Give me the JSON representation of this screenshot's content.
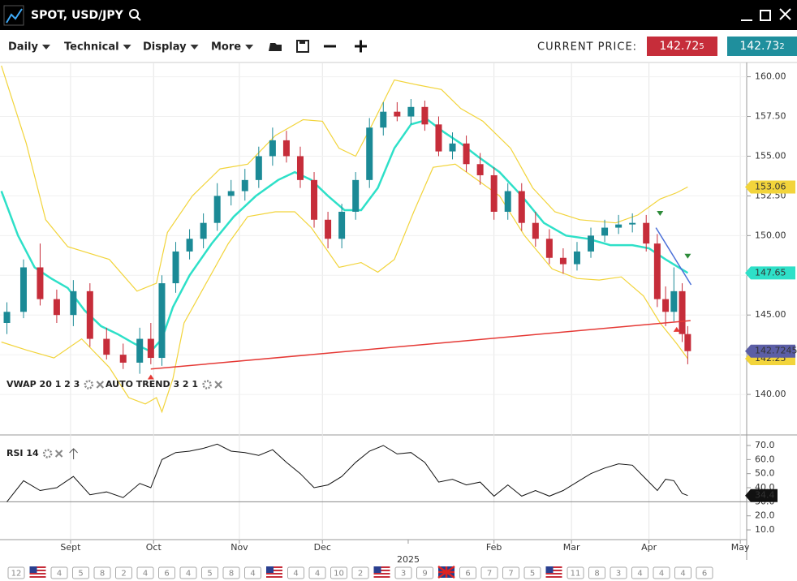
{
  "header": {
    "title": "SPOT, USD/JPY"
  },
  "toolbar": {
    "menus": [
      "Daily",
      "Technical",
      "Display",
      "More"
    ],
    "price_label": "CURRENT PRICE:",
    "bid": "142.72",
    "bid_pip": "5",
    "ask": "142.73",
    "ask_pip": "2"
  },
  "chart_data": [
    {
      "type": "candlestick",
      "grid": true,
      "up_color": "#1b8a96",
      "down_color": "#c62d3a",
      "last_color": "#5b5ea6",
      "indicators": [
        "VWAP 20 1 2 3",
        "AUTO TREND 3 2 1"
      ],
      "xlim": [
        5.5,
        275.3
      ],
      "ylim": [
        137.5,
        160.9
      ],
      "yticks": [
        {
          "value": 140,
          "label": "140.00"
        },
        {
          "value": 142.5,
          "label": "142.50"
        },
        {
          "value": 145,
          "label": "145.00"
        },
        {
          "value": 147.5,
          "label": "147.50"
        },
        {
          "value": 150,
          "label": "150.00"
        },
        {
          "value": 152.5,
          "label": "152.50"
        },
        {
          "value": 155,
          "label": "155.00"
        },
        {
          "value": 157.5,
          "label": "157.50"
        },
        {
          "value": 160,
          "label": "160.00"
        }
      ],
      "x": [
        8,
        14,
        20,
        26,
        32,
        38,
        44,
        50,
        56,
        60,
        64,
        69,
        74,
        79,
        84,
        89,
        94,
        99,
        104,
        109,
        114,
        119,
        124,
        129,
        134,
        139,
        144,
        149,
        154,
        159,
        164,
        169,
        174,
        179,
        184,
        189,
        194,
        199,
        204,
        209,
        214,
        219,
        224,
        229,
        234,
        239,
        243,
        246,
        249,
        252,
        254
      ],
      "open": [
        144.5,
        145.2,
        148,
        146,
        145,
        146.5,
        143.5,
        142.5,
        142,
        143.5,
        142.3,
        147,
        149,
        149.8,
        150.8,
        152.5,
        152.8,
        153.5,
        155,
        156,
        155,
        153.5,
        151,
        149.8,
        151.5,
        153.5,
        156.8,
        157.8,
        157.5,
        158.1,
        157,
        155.3,
        155.8,
        154.5,
        153.8,
        151.5,
        152.8,
        150.8,
        149.8,
        148.6,
        148.2,
        149,
        150,
        150.5,
        150.7,
        150.8,
        149.5,
        146,
        145.2,
        146.5,
        143.8
      ],
      "high": [
        145.8,
        148.5,
        149.5,
        146.6,
        147.2,
        147,
        144.2,
        143.2,
        144.2,
        144.5,
        147.5,
        149.6,
        150.4,
        151.4,
        153.3,
        153.5,
        154.2,
        155.6,
        156.8,
        156.6,
        155.6,
        154,
        151.5,
        152,
        154,
        157.4,
        158.4,
        158.4,
        158.6,
        158.5,
        157.5,
        156.5,
        156.3,
        155.2,
        154.3,
        153.3,
        153.3,
        151.5,
        150.4,
        149.2,
        149.6,
        150.5,
        151,
        151.3,
        151.4,
        151.3,
        150.1,
        146.8,
        148,
        147,
        144.3
      ],
      "low": [
        143.8,
        144.8,
        145.6,
        144.5,
        144.3,
        143,
        142.2,
        141.6,
        141.3,
        141.9,
        141.8,
        146.4,
        148.5,
        149.2,
        150.3,
        151.9,
        152.2,
        153,
        154.4,
        154.6,
        153,
        150.5,
        149.2,
        149.2,
        151,
        153,
        156.3,
        157.2,
        157,
        156.6,
        155,
        154.8,
        154,
        153.2,
        151,
        151,
        150.3,
        149.3,
        148.2,
        147.6,
        147.8,
        148.6,
        149.6,
        150.1,
        150.2,
        149,
        145.5,
        144.3,
        144.6,
        143.3,
        141.9
      ],
      "close": [
        145.2,
        148,
        146,
        145,
        146.5,
        143.5,
        142.5,
        142,
        143.5,
        142.3,
        147,
        149,
        149.8,
        150.8,
        152.5,
        152.8,
        153.5,
        155,
        156,
        155,
        153.5,
        151,
        149.8,
        151.5,
        153.5,
        156.8,
        157.8,
        157.5,
        158.1,
        157,
        155.3,
        155.8,
        154.5,
        153.8,
        151.5,
        152.8,
        150.8,
        149.8,
        148.6,
        148.2,
        149,
        150,
        150.5,
        150.7,
        150.8,
        149.5,
        146,
        145.2,
        146.5,
        143.8,
        142.7245
      ],
      "bands": [
        {
          "color": "#f2d43b",
          "x": [
            6,
            15,
            22,
            30,
            45,
            55,
            62,
            66,
            75,
            85,
            95,
            105,
            115,
            122,
            128,
            134,
            140,
            148,
            156,
            165,
            172,
            180,
            190,
            198,
            206,
            215,
            228,
            236,
            244,
            250,
            254
          ],
          "values": [
            160.7,
            155.8,
            151,
            149.3,
            148.5,
            146.5,
            147,
            150.2,
            152.5,
            154.2,
            154.5,
            156.3,
            157.3,
            157.2,
            155.5,
            155,
            157,
            159.8,
            159.5,
            159.2,
            158,
            157.2,
            155.5,
            153,
            151.5,
            151,
            150.8,
            151.3,
            152.3,
            152.7,
            153.06
          ]
        },
        {
          "color": "#f2d43b",
          "x": [
            6,
            15,
            25,
            35,
            45,
            52,
            58,
            62,
            64,
            68,
            72,
            80,
            88,
            95,
            105,
            112,
            118,
            122,
            128,
            136,
            142,
            148,
            155,
            162,
            170,
            178,
            186,
            195,
            205,
            214,
            222,
            230,
            238,
            244,
            250,
            254
          ],
          "values": [
            143.3,
            142.8,
            142.3,
            143.5,
            141.7,
            139.8,
            139.4,
            139.8,
            138.9,
            141,
            144.5,
            147,
            149.5,
            151.2,
            151.5,
            151.5,
            150.5,
            149.5,
            148,
            148.3,
            147.7,
            148.5,
            151.5,
            154.3,
            154.5,
            153.5,
            152.5,
            150,
            147.9,
            147.3,
            147.2,
            147.4,
            146.2,
            144.5,
            143.2,
            142.25
          ]
        },
        {
          "color": "#2ee0c8",
          "x": [
            6,
            12,
            18,
            24,
            30,
            36,
            42,
            48,
            54,
            60,
            64,
            68,
            74,
            82,
            90,
            98,
            106,
            112,
            118,
            124,
            130,
            136,
            142,
            148,
            154,
            160,
            166,
            172,
            178,
            186,
            194,
            202,
            210,
            218,
            226,
            234,
            240,
            246,
            254
          ],
          "values": [
            152.8,
            150,
            148,
            147.3,
            146.7,
            145.3,
            144.3,
            143.8,
            143.2,
            142.7,
            143.5,
            145.5,
            147.5,
            149.5,
            151.2,
            152.5,
            153.5,
            154,
            153.5,
            152.5,
            151.6,
            151.6,
            153,
            155.5,
            157,
            157.3,
            156.5,
            155.8,
            155,
            154,
            152.5,
            150.8,
            150,
            149.8,
            149.4,
            149.4,
            149.2,
            148.5,
            147.65
          ]
        }
      ],
      "trendlines": [
        {
          "color": "#e53935",
          "x": [
            60,
            255
          ],
          "values": [
            141.6,
            144.65
          ]
        },
        {
          "color": "#4a6fd8",
          "x": [
            242.5,
            255.2
          ],
          "values": [
            150.5,
            146.9
          ]
        }
      ],
      "signals": [
        {
          "x": 244,
          "value": 151.4,
          "color": "#2e8b3a",
          "dir": "down"
        },
        {
          "x": 254,
          "value": 148.7,
          "color": "#2e8b3a",
          "dir": "down"
        },
        {
          "x": 250,
          "value": 144.1,
          "color": "#e53935",
          "dir": "up"
        },
        {
          "x": 60,
          "value": 141.1,
          "color": "#e53935",
          "dir": "up"
        }
      ]
    },
    {
      "type": "line",
      "title": "RSI 14",
      "color": "#111111",
      "reference": 30,
      "xlim": [
        5.5,
        275.3
      ],
      "ylim": [
        3.1,
        75.2
      ],
      "xticks": [
        {
          "value": 31,
          "label": "Sept"
        },
        {
          "value": 61,
          "label": "Oct"
        },
        {
          "value": 92,
          "label": "Nov"
        },
        {
          "value": 122,
          "label": "Dec"
        },
        {
          "value": 184,
          "label": "Feb"
        },
        {
          "value": 212,
          "label": "Mar"
        },
        {
          "value": 240,
          "label": "Apr"
        },
        {
          "value": 273,
          "label": "May"
        }
      ],
      "year_label": {
        "value": 153,
        "label": "2025"
      },
      "yticks": [
        {
          "value": 70,
          "label": "70.0"
        },
        {
          "value": 60,
          "label": "60.0"
        },
        {
          "value": 50,
          "label": "50.0"
        },
        {
          "value": 40,
          "label": "40.0"
        },
        {
          "value": 30,
          "label": "30.0"
        },
        {
          "value": 20,
          "label": "20.0"
        },
        {
          "value": 10,
          "label": "10.0"
        }
      ],
      "x": [
        8,
        14,
        20,
        26,
        32,
        38,
        44,
        50,
        56,
        60,
        64,
        69,
        74,
        79,
        84,
        89,
        94,
        99,
        104,
        109,
        114,
        119,
        124,
        129,
        134,
        139,
        144,
        149,
        154,
        159,
        164,
        169,
        174,
        179,
        184,
        189,
        194,
        199,
        204,
        209,
        214,
        219,
        224,
        229,
        234,
        239,
        243,
        246,
        249,
        252,
        254
      ],
      "values": [
        30,
        45,
        38,
        40,
        48,
        35,
        37,
        33,
        43,
        40,
        60,
        65,
        66,
        68,
        71,
        66,
        65,
        63,
        67,
        58,
        50,
        40,
        42,
        48,
        58,
        66,
        70,
        64,
        65,
        58,
        44,
        46,
        42,
        44,
        34,
        42,
        34,
        38,
        34,
        38,
        44,
        50,
        54,
        57,
        56,
        46,
        38,
        46,
        45,
        36,
        34.4
      ]
    }
  ],
  "events": [
    {
      "label": "12"
    },
    {
      "flag": "us"
    },
    {
      "label": "4"
    },
    {
      "label": "5"
    },
    {
      "label": "8"
    },
    {
      "label": "2"
    },
    {
      "label": "4"
    },
    {
      "label": "6"
    },
    {
      "label": "4"
    },
    {
      "label": "5"
    },
    {
      "label": "8"
    },
    {
      "label": "4"
    },
    {
      "flag": "us"
    },
    {
      "label": "4"
    },
    {
      "label": "4"
    },
    {
      "label": "10"
    },
    {
      "label": "2"
    },
    {
      "flag": "us"
    },
    {
      "label": "3"
    },
    {
      "label": "9"
    },
    {
      "flag": "gb"
    },
    {
      "label": "6"
    },
    {
      "label": "7"
    },
    {
      "label": "7"
    },
    {
      "label": "5"
    },
    {
      "flag": "us"
    },
    {
      "label": "11"
    },
    {
      "label": "8"
    },
    {
      "label": "3"
    },
    {
      "label": "4"
    },
    {
      "label": "4"
    },
    {
      "label": "4"
    },
    {
      "label": "6"
    }
  ]
}
